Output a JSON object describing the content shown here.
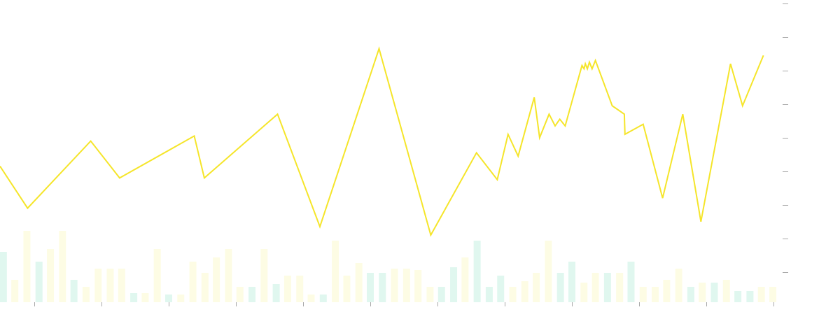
{
  "chart_data": {
    "type": "line",
    "title": "",
    "xlabel": "",
    "ylabel": "",
    "grid": false,
    "legend": "none",
    "ylim": [
      0,
      9
    ],
    "volume_ylim": [
      0,
      10
    ],
    "x_ticks": [
      1,
      2,
      3,
      4,
      5,
      6,
      7,
      8,
      9,
      10,
      11,
      12
    ],
    "y_ticks": [
      1,
      2,
      3,
      4,
      5,
      6,
      7,
      8,
      9
    ],
    "series": [
      {
        "color": "#f5e52a",
        "points": [
          [
            0.49,
            4.05
          ],
          [
            0.9,
            2.8
          ],
          [
            1.84,
            4.8
          ],
          [
            2.27,
            3.7
          ],
          [
            3.38,
            4.95
          ],
          [
            3.53,
            3.7
          ],
          [
            4.62,
            5.6
          ],
          [
            5.25,
            2.25
          ],
          [
            6.13,
            7.55
          ],
          [
            6.9,
            2.0
          ],
          [
            7.58,
            4.45
          ],
          [
            7.89,
            3.65
          ],
          [
            8.05,
            5.0
          ],
          [
            8.2,
            4.35
          ],
          [
            8.44,
            6.1
          ],
          [
            8.52,
            4.9
          ],
          [
            8.66,
            5.6
          ],
          [
            8.75,
            5.25
          ],
          [
            8.82,
            5.45
          ],
          [
            8.9,
            5.25
          ],
          [
            9.15,
            7.05
          ],
          [
            9.18,
            6.95
          ],
          [
            9.2,
            7.1
          ],
          [
            9.23,
            6.95
          ],
          [
            9.26,
            7.15
          ],
          [
            9.3,
            6.95
          ],
          [
            9.35,
            7.2
          ],
          [
            9.6,
            5.85
          ],
          [
            9.78,
            5.6
          ],
          [
            9.79,
            5.0
          ],
          [
            10.06,
            5.3
          ],
          [
            10.35,
            3.1
          ],
          [
            10.65,
            5.6
          ],
          [
            10.92,
            2.4
          ],
          [
            11.36,
            7.1
          ],
          [
            11.54,
            5.85
          ],
          [
            11.85,
            7.35
          ]
        ]
      }
    ],
    "volume": {
      "colors": {
        "up": "#e0f7ef",
        "down": "#fdfce4"
      },
      "bars": [
        [
          0.54,
          3.6,
          "up"
        ],
        [
          0.71,
          1.6,
          "down"
        ],
        [
          0.89,
          5.1,
          "down"
        ],
        [
          1.07,
          2.9,
          "up"
        ],
        [
          1.24,
          3.8,
          "down"
        ],
        [
          1.42,
          5.1,
          "down"
        ],
        [
          1.59,
          1.6,
          "up"
        ],
        [
          1.77,
          1.1,
          "down"
        ],
        [
          1.95,
          2.4,
          "down"
        ],
        [
          2.13,
          2.4,
          "down"
        ],
        [
          2.3,
          2.4,
          "down"
        ],
        [
          2.48,
          0.65,
          "up"
        ],
        [
          2.65,
          0.65,
          "down"
        ],
        [
          2.83,
          3.8,
          "down"
        ],
        [
          3.0,
          0.55,
          "up"
        ],
        [
          3.18,
          0.55,
          "down"
        ],
        [
          3.36,
          2.9,
          "down"
        ],
        [
          3.54,
          2.1,
          "down"
        ],
        [
          3.71,
          3.2,
          "down"
        ],
        [
          3.89,
          3.8,
          "down"
        ],
        [
          4.06,
          1.1,
          "down"
        ],
        [
          4.24,
          1.1,
          "up"
        ],
        [
          4.42,
          3.8,
          "down"
        ],
        [
          4.6,
          1.3,
          "up"
        ],
        [
          4.77,
          1.9,
          "down"
        ],
        [
          4.95,
          1.9,
          "down"
        ],
        [
          5.12,
          0.55,
          "down"
        ],
        [
          5.3,
          0.55,
          "up"
        ],
        [
          5.48,
          4.4,
          "down"
        ],
        [
          5.65,
          1.9,
          "down"
        ],
        [
          5.83,
          2.8,
          "down"
        ],
        [
          6.0,
          2.1,
          "up"
        ],
        [
          6.18,
          2.1,
          "up"
        ],
        [
          6.36,
          2.4,
          "down"
        ],
        [
          6.54,
          2.4,
          "down"
        ],
        [
          6.71,
          2.3,
          "down"
        ],
        [
          6.89,
          1.1,
          "down"
        ],
        [
          7.06,
          1.1,
          "up"
        ],
        [
          7.24,
          2.5,
          "up"
        ],
        [
          7.41,
          3.2,
          "down"
        ],
        [
          7.59,
          4.4,
          "up"
        ],
        [
          7.77,
          1.1,
          "up"
        ],
        [
          7.94,
          1.9,
          "up"
        ],
        [
          8.12,
          1.1,
          "down"
        ],
        [
          8.3,
          1.5,
          "down"
        ],
        [
          8.47,
          2.1,
          "down"
        ],
        [
          8.65,
          4.4,
          "down"
        ],
        [
          8.83,
          2.1,
          "up"
        ],
        [
          9.0,
          2.9,
          "up"
        ],
        [
          9.18,
          1.4,
          "down"
        ],
        [
          9.35,
          2.1,
          "down"
        ],
        [
          9.53,
          2.1,
          "up"
        ],
        [
          9.71,
          2.1,
          "down"
        ],
        [
          9.88,
          2.9,
          "up"
        ],
        [
          10.06,
          1.1,
          "down"
        ],
        [
          10.24,
          1.1,
          "down"
        ],
        [
          10.41,
          1.6,
          "down"
        ],
        [
          10.59,
          2.4,
          "down"
        ],
        [
          10.77,
          1.1,
          "up"
        ],
        [
          10.94,
          1.4,
          "down"
        ],
        [
          11.12,
          1.4,
          "up"
        ],
        [
          11.3,
          1.6,
          "down"
        ],
        [
          11.47,
          0.8,
          "up"
        ],
        [
          11.65,
          0.8,
          "up"
        ],
        [
          11.82,
          1.1,
          "down"
        ],
        [
          11.99,
          1.1,
          "down"
        ]
      ]
    }
  }
}
